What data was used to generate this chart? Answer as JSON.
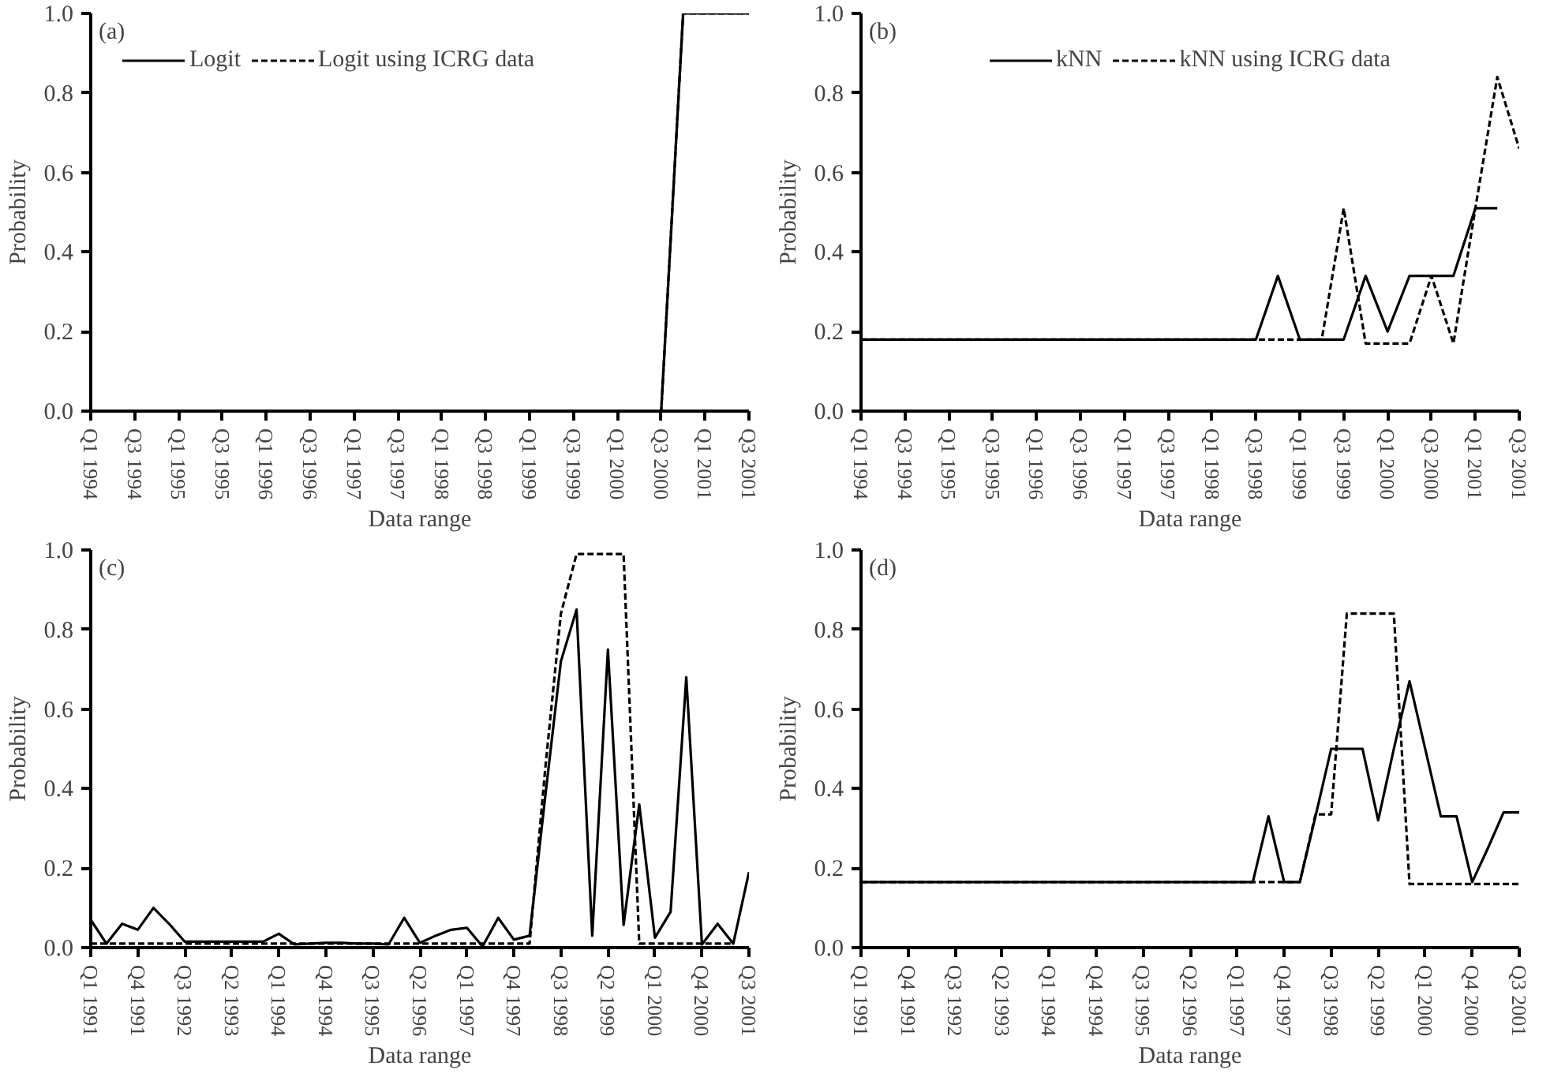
{
  "chart_data": [
    {
      "type": "line",
      "annotations": [
        "(a)"
      ],
      "xlabel": "Data range",
      "ylabel": "Probability",
      "legend": "top left",
      "grid": false,
      "ylim": [
        0,
        1
      ],
      "categories": [
        "Q1 1994",
        null,
        "Q3 1994",
        null,
        "Q1 1995",
        null,
        "Q3 1995",
        null,
        "Q1 1996",
        null,
        "Q3 1996",
        null,
        "Q1 1997",
        null,
        "Q3 1997",
        null,
        "Q1 1998",
        null,
        "Q3 1998",
        null,
        "Q1 1999",
        null,
        "Q3 1999",
        null,
        "Q1 2000",
        null,
        "Q3 2000",
        null,
        "Q1 2001",
        null,
        "Q3 2001"
      ],
      "yticks": [
        {
          "value": 0,
          "label": "0.0"
        },
        {
          "value": 0.2,
          "label": "0.2"
        },
        {
          "value": 0.4,
          "label": "0.4"
        },
        {
          "value": 0.6,
          "label": "0.6"
        },
        {
          "value": 0.8,
          "label": "0.8"
        },
        {
          "value": 1,
          "label": "1.0"
        }
      ],
      "series": [
        {
          "name": "Logit",
          "color": "#000000",
          "line_style": "solid",
          "values": [
            0,
            0,
            0,
            0,
            0,
            0,
            0,
            0,
            0,
            0,
            0,
            0,
            0,
            0,
            0,
            0,
            0,
            0,
            0,
            0,
            0,
            0,
            0,
            0,
            0,
            0,
            0,
            1,
            1,
            1,
            1
          ]
        },
        {
          "name": "Logit using ICRG data",
          "color": "#000000",
          "line_style": "dashed",
          "values": [
            0,
            0,
            0,
            0,
            0,
            0,
            0,
            0,
            0,
            0,
            0,
            0,
            0,
            0,
            0,
            0,
            0,
            0,
            0,
            0,
            0,
            0,
            0,
            0,
            0,
            0,
            0,
            1,
            1,
            1,
            1
          ]
        }
      ]
    },
    {
      "type": "line",
      "annotations": [
        "(b)"
      ],
      "xlabel": "Data range",
      "ylabel": "Probability",
      "legend": "top",
      "grid": false,
      "ylim": [
        0,
        1
      ],
      "categories": [
        "Q1 1994",
        null,
        "Q3 1994",
        null,
        "Q1 1995",
        null,
        "Q3 1995",
        null,
        "Q1 1996",
        null,
        "Q3 1996",
        null,
        "Q1 1997",
        null,
        "Q3 1997",
        null,
        "Q1 1998",
        null,
        "Q3 1998",
        null,
        "Q1 1999",
        null,
        "Q3 1999",
        null,
        "Q1 2000",
        null,
        "Q3 2000",
        null,
        "Q1 2001",
        null,
        "Q3 2001"
      ],
      "yticks": [
        {
          "value": 0,
          "label": "0.0"
        },
        {
          "value": 0.2,
          "label": "0.2"
        },
        {
          "value": 0.4,
          "label": "0.4"
        },
        {
          "value": 0.6,
          "label": "0.6"
        },
        {
          "value": 0.8,
          "label": "0.8"
        },
        {
          "value": 1,
          "label": "1.0"
        }
      ],
      "series": [
        {
          "name": "kNN",
          "color": "#000000",
          "line_style": "solid",
          "values": [
            0.18,
            0.18,
            0.18,
            0.18,
            0.18,
            0.18,
            0.18,
            0.18,
            0.18,
            0.18,
            0.18,
            0.18,
            0.18,
            0.18,
            0.18,
            0.18,
            0.18,
            0.18,
            0.18,
            0.34,
            0.18,
            0.18,
            0.18,
            0.34,
            0.2,
            0.34,
            0.34,
            0.34,
            0.51,
            0.51,
            null
          ]
        },
        {
          "name": "kNN using ICRG data",
          "color": "#000000",
          "line_style": "dashed",
          "values": [
            0.18,
            0.18,
            0.18,
            0.18,
            0.18,
            0.18,
            0.18,
            0.18,
            0.18,
            0.18,
            0.18,
            0.18,
            0.18,
            0.18,
            0.18,
            0.18,
            0.18,
            0.18,
            0.18,
            0.18,
            0.18,
            0.18,
            0.51,
            0.17,
            0.17,
            0.17,
            0.34,
            0.17,
            0.51,
            0.84,
            0.66
          ]
        }
      ]
    },
    {
      "type": "line",
      "annotations": [
        "(c)"
      ],
      "xlabel": "Data range",
      "ylabel": "Probability",
      "grid": false,
      "ylim": [
        0,
        1
      ],
      "categories": [
        "Q1 1991",
        null,
        null,
        "Q4 1991",
        null,
        null,
        "Q3 1992",
        null,
        null,
        "Q2 1993",
        null,
        null,
        "Q1 1994",
        null,
        null,
        "Q4 1994",
        null,
        null,
        "Q3 1995",
        null,
        null,
        "Q2 1996",
        null,
        null,
        "Q1 1997",
        null,
        null,
        "Q4 1997",
        null,
        null,
        "Q3 1998",
        null,
        null,
        "Q2 1999",
        null,
        null,
        "Q1 2000",
        null,
        null,
        "Q4 2000",
        null,
        null,
        "Q3 2001"
      ],
      "yticks": [
        {
          "value": 0,
          "label": "0.0"
        },
        {
          "value": 0.2,
          "label": "0.2"
        },
        {
          "value": 0.4,
          "label": "0.4"
        },
        {
          "value": 0.6,
          "label": "0.6"
        },
        {
          "value": 0.8,
          "label": "0.8"
        },
        {
          "value": 1,
          "label": "1.0"
        }
      ],
      "series": [
        {
          "color": "#000000",
          "line_style": "solid",
          "values": [
            0.07,
            0.01,
            0.06,
            0.045,
            0.1,
            0.06,
            0.015,
            0.015,
            0.015,
            0.015,
            0.015,
            0.015,
            0.035,
            0.008,
            0.01,
            0.012,
            0.012,
            0.01,
            0.01,
            0.008,
            0.075,
            0.012,
            0.03,
            0.045,
            0.05,
            0.003,
            0.075,
            0.02,
            0.03,
            0.38,
            0.72,
            0.85,
            0.03,
            0.75,
            0.057,
            0.36,
            0.025,
            0.09,
            0.68,
            0.008,
            0.06,
            0.01,
            0.19
          ]
        },
        {
          "color": "#000000",
          "line_style": "dashed",
          "values": [
            0.01,
            0.01,
            0.01,
            0.01,
            0.01,
            0.01,
            0.01,
            0.01,
            0.01,
            0.01,
            0.01,
            0.01,
            0.01,
            0.01,
            0.01,
            0.01,
            0.01,
            0.01,
            0.01,
            0.01,
            0.01,
            0.01,
            0.01,
            0.01,
            0.01,
            0.01,
            0.01,
            0.01,
            0.01,
            0.45,
            0.84,
            0.99,
            0.99,
            0.99,
            0.99,
            0.01,
            0.01,
            0.01,
            0.01,
            0.01,
            0.01,
            0.01,
            null
          ]
        }
      ]
    },
    {
      "type": "line",
      "annotations": [
        "(d)"
      ],
      "xlabel": "Data range",
      "ylabel": "Probability",
      "grid": false,
      "ylim": [
        0,
        1
      ],
      "categories": [
        "Q1 1991",
        null,
        null,
        "Q4 1991",
        null,
        null,
        "Q3 1992",
        null,
        null,
        "Q2 1993",
        null,
        null,
        "Q1 1994",
        null,
        null,
        "Q4 1994",
        null,
        null,
        "Q3 1995",
        null,
        null,
        "Q2 1996",
        null,
        null,
        "Q1 1997",
        null,
        null,
        "Q4 1997",
        null,
        null,
        "Q3 1998",
        null,
        null,
        "Q2 1999",
        null,
        null,
        "Q1 2000",
        null,
        null,
        "Q4 2000",
        null,
        null,
        "Q3 2001"
      ],
      "yticks": [
        {
          "value": 0,
          "label": "0.0"
        },
        {
          "value": 0.2,
          "label": "0.2"
        },
        {
          "value": 0.4,
          "label": "0.4"
        },
        {
          "value": 0.6,
          "label": "0.6"
        },
        {
          "value": 0.8,
          "label": "0.8"
        },
        {
          "value": 1,
          "label": "1.0"
        }
      ],
      "series": [
        {
          "color": "#000000",
          "line_style": "solid",
          "values": [
            0.165,
            0.165,
            0.165,
            0.165,
            0.165,
            0.165,
            0.165,
            0.165,
            0.165,
            0.165,
            0.165,
            0.165,
            0.165,
            0.165,
            0.165,
            0.165,
            0.165,
            0.165,
            0.165,
            0.165,
            0.165,
            0.165,
            0.165,
            0.165,
            0.165,
            0.165,
            0.33,
            0.165,
            0.165,
            0.33,
            0.5,
            0.5,
            0.5,
            0.32,
            0.5,
            0.67,
            0.5,
            0.33,
            0.33,
            0.165,
            0.25,
            0.34,
            0.34
          ]
        },
        {
          "color": "#000000",
          "line_style": "dashed",
          "values": [
            0.165,
            0.165,
            0.165,
            0.165,
            0.165,
            0.165,
            0.165,
            0.165,
            0.165,
            0.165,
            0.165,
            0.165,
            0.165,
            0.165,
            0.165,
            0.165,
            0.165,
            0.165,
            0.165,
            0.165,
            0.165,
            0.165,
            0.165,
            0.165,
            0.165,
            0.165,
            0.165,
            0.165,
            0.165,
            0.335,
            0.335,
            0.84,
            0.84,
            0.84,
            0.84,
            0.16,
            0.16,
            0.16,
            0.16,
            0.16,
            0.16,
            0.16,
            0.16
          ]
        }
      ]
    }
  ]
}
